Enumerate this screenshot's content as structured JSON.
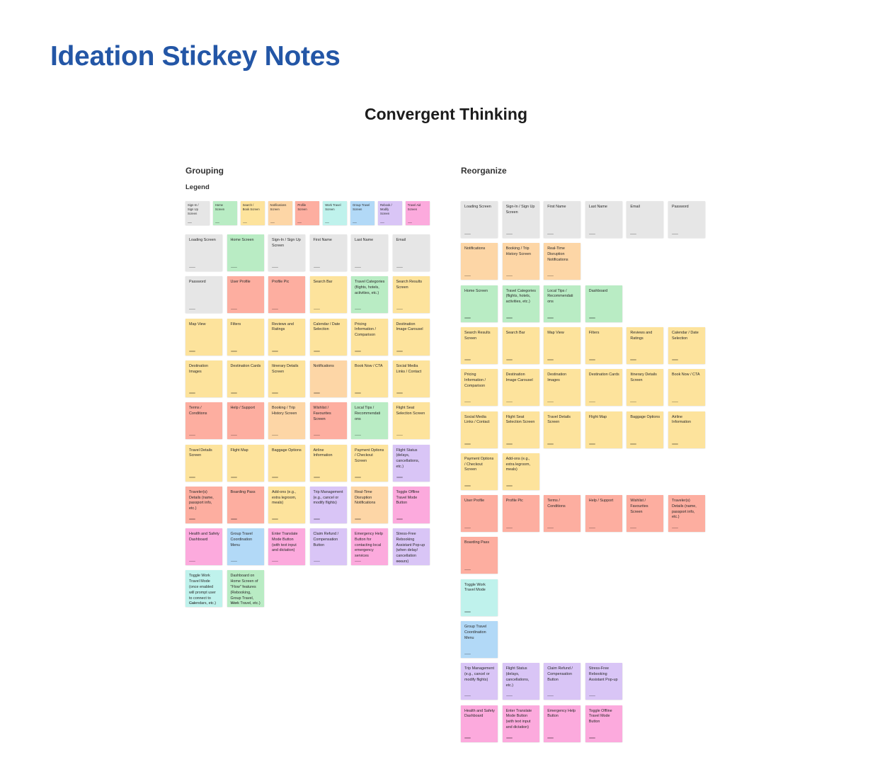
{
  "page": {
    "title": "Ideation Stickey Notes",
    "subtitle": "Convergent Thinking"
  },
  "colors": {
    "gray": "#e6e6e6",
    "green": "#b9ecc4",
    "yellow": "#fde39c",
    "peach": "#fdd6a6",
    "salmon": "#fdaea0",
    "cyan": "#bff2ec",
    "blue": "#b2d9f7",
    "purple": "#d9c5f6",
    "pink": "#fcaadd"
  },
  "grouping": {
    "title": "Grouping",
    "legend_title": "Legend",
    "legend": [
      {
        "text": "Sign-In /\nSign Up\nScreen",
        "color": "gray"
      },
      {
        "text": "Home\nScreen",
        "color": "green"
      },
      {
        "text": "Search /\nBook Screen",
        "color": "yellow"
      },
      {
        "text": "Notifications\nScreen",
        "color": "peach"
      },
      {
        "text": "Profile\nScreen",
        "color": "salmon"
      },
      {
        "text": "Work Travel\nScreen",
        "color": "cyan"
      },
      {
        "text": "Group Travel\nScreen",
        "color": "blue"
      },
      {
        "text": "Rebook /\nModify\nScreen",
        "color": "purple"
      },
      {
        "text": "Travel Aid\nScreen",
        "color": "pink"
      }
    ],
    "notes": [
      [
        {
          "text": "Loading Screen",
          "color": "gray"
        },
        {
          "text": "Home Screen",
          "color": "green"
        },
        {
          "text": "Sign-In / Sign Up\nScreen",
          "color": "gray"
        },
        {
          "text": "First Name",
          "color": "gray"
        },
        {
          "text": "Last Name",
          "color": "gray"
        },
        {
          "text": "Email",
          "color": "gray"
        }
      ],
      [
        {
          "text": "Password",
          "color": "gray"
        },
        {
          "text": "User Profile",
          "color": "salmon"
        },
        {
          "text": "Profile Pic",
          "color": "salmon"
        },
        {
          "text": "Search Bar",
          "color": "yellow"
        },
        {
          "text": "Travel Categories\n(flights, hotels,\nactivities, etc.)",
          "color": "green"
        },
        {
          "text": "Search Results\nScreen",
          "color": "yellow"
        }
      ],
      [
        {
          "text": "Map View",
          "color": "yellow"
        },
        {
          "text": "Filters",
          "color": "yellow"
        },
        {
          "text": "Reviews and\nRatings",
          "color": "yellow"
        },
        {
          "text": "Calendar / Date\nSelection",
          "color": "yellow"
        },
        {
          "text": "Pricing\nInformation /\nComparison",
          "color": "yellow"
        },
        {
          "text": "Destination\nImage Carousel",
          "color": "yellow"
        }
      ],
      [
        {
          "text": "Destination\nImages",
          "color": "yellow"
        },
        {
          "text": "Destination Cards",
          "color": "yellow"
        },
        {
          "text": "Itinerary Details\nScreen",
          "color": "yellow"
        },
        {
          "text": "Notifications",
          "color": "peach"
        },
        {
          "text": "Book Now / CTA",
          "color": "yellow"
        },
        {
          "text": "Social Media\nLinks / Contact",
          "color": "yellow"
        }
      ],
      [
        {
          "text": "Terms /\nConditions",
          "color": "salmon"
        },
        {
          "text": "Help / Support",
          "color": "salmon"
        },
        {
          "text": "Booking / Trip\nHistory Screen",
          "color": "peach"
        },
        {
          "text": "Wishlist /\nFavourites Screen",
          "color": "salmon"
        },
        {
          "text": "Local Tips /\nRecommendati\nons",
          "color": "green"
        },
        {
          "text": "Flight Seat\nSelection Screen",
          "color": "yellow"
        }
      ],
      [
        {
          "text": "Travel Details\nScreen",
          "color": "yellow"
        },
        {
          "text": "Flight Map",
          "color": "yellow"
        },
        {
          "text": "Baggage Options",
          "color": "yellow"
        },
        {
          "text": "Airline\nInformation",
          "color": "yellow"
        },
        {
          "text": "Payment Options\n/ Checkout\nScreen",
          "color": "yellow"
        },
        {
          "text": "Flight Status\n(delays,\ncancellations,\netc.)",
          "color": "purple"
        }
      ],
      [
        {
          "text": "Traveler(s)\nDetails (name,\npassport info,\netc.)",
          "color": "salmon"
        },
        {
          "text": "Boarding Pass",
          "color": "salmon"
        },
        {
          "text": "Add-ons (e.g.,\nextra legroom,\nmeals)",
          "color": "yellow"
        },
        {
          "text": "Trip Management\n(e.g., cancel or\nmodify flights)",
          "color": "purple"
        },
        {
          "text": "Real-Time\nDisruption\nNotifications",
          "color": "peach"
        },
        {
          "text": "Toggle Offline\nTravel Mode\nButton",
          "color": "pink"
        }
      ],
      [
        {
          "text": "Health and Safety\nDashboard",
          "color": "pink"
        },
        {
          "text": "Group Travel\nCoordination\nMenu",
          "color": "blue"
        },
        {
          "text": "Enter Translate\nMode Button\n(with text input\nand dictation)",
          "color": "pink"
        },
        {
          "text": "Claim Refund /\nCompensation\nButton",
          "color": "purple"
        },
        {
          "text": "Emergency Help\nButton for\ncontacting local\nemergency\nservices",
          "color": "pink"
        },
        {
          "text": "Stress-Free\nRebooking\nAssistant Pop-up\n(when delay/\ncancellation\noccurs)",
          "color": "purple"
        }
      ],
      [
        {
          "text": "Toggle Work\nTravel Mode\n(once enabled\nwill prompt user\nto connect to\nCalendars, etc.)",
          "color": "cyan"
        },
        {
          "text": "Dashboard on\nHome Screen of\n\"Flow\" features\n(Rebooking,\nGroup Travel,\nWork Travel, etc.)",
          "color": "green"
        }
      ]
    ]
  },
  "reorganize": {
    "title": "Reorganize",
    "notes": [
      [
        {
          "text": "Loading Screen",
          "color": "gray"
        },
        {
          "text": "Sign-In / Sign Up\nScreen",
          "color": "gray"
        },
        {
          "text": "First Name",
          "color": "gray"
        },
        {
          "text": "Last Name",
          "color": "gray"
        },
        {
          "text": "Email",
          "color": "gray"
        },
        {
          "text": "Password",
          "color": "gray"
        }
      ],
      [
        {
          "text": "Notifications",
          "color": "peach"
        },
        {
          "text": "Booking / Trip\nHistory Screen",
          "color": "peach"
        },
        {
          "text": "Real-Time\nDisruption\nNotifications",
          "color": "peach"
        }
      ],
      [
        {
          "text": "Home Screen",
          "color": "green"
        },
        {
          "text": "Travel Categories\n(flights, hotels,\nactivities, etc.)",
          "color": "green"
        },
        {
          "text": "Local Tips /\nRecommendati\nons",
          "color": "green"
        },
        {
          "text": "Dashboard",
          "color": "green"
        }
      ],
      [
        {
          "text": "Search Results\nScreen",
          "color": "yellow"
        },
        {
          "text": "Search Bar",
          "color": "yellow"
        },
        {
          "text": "Map View",
          "color": "yellow"
        },
        {
          "text": "Filters",
          "color": "yellow"
        },
        {
          "text": "Reviews and\nRatings",
          "color": "yellow"
        },
        {
          "text": "Calendar / Date\nSelection",
          "color": "yellow"
        }
      ],
      [
        {
          "text": "Pricing\nInformation /\nComparison",
          "color": "yellow"
        },
        {
          "text": "Destination\nImage Carousel",
          "color": "yellow"
        },
        {
          "text": "Destination\nImages",
          "color": "yellow"
        },
        {
          "text": "Destination Cards",
          "color": "yellow"
        },
        {
          "text": "Itinerary Details\nScreen",
          "color": "yellow"
        },
        {
          "text": "Book Now / CTA",
          "color": "yellow"
        }
      ],
      [
        {
          "text": "Social Media\nLinks / Contact",
          "color": "yellow"
        },
        {
          "text": "Flight Seat\nSelection Screen",
          "color": "yellow"
        },
        {
          "text": "Travel Details\nScreen",
          "color": "yellow"
        },
        {
          "text": "Flight Map",
          "color": "yellow"
        },
        {
          "text": "Baggage Options",
          "color": "yellow"
        },
        {
          "text": "Airline\nInformation",
          "color": "yellow"
        }
      ],
      [
        {
          "text": "Payment Options\n/ Checkout\nScreen",
          "color": "yellow"
        },
        {
          "text": "Add-ons (e.g.,\nextra legroom,\nmeals)",
          "color": "yellow"
        }
      ],
      [
        {
          "text": "User Profile",
          "color": "salmon"
        },
        {
          "text": "Profile Pic",
          "color": "salmon"
        },
        {
          "text": "Terms /\nConditions",
          "color": "salmon"
        },
        {
          "text": "Help / Support",
          "color": "salmon"
        },
        {
          "text": "Wishlist /\nFavourites Screen",
          "color": "salmon"
        },
        {
          "text": "Traveler(s)\nDetails (name,\npassport info,\netc.)",
          "color": "salmon"
        }
      ],
      [
        {
          "text": "Boarding Pass",
          "color": "salmon"
        }
      ],
      [
        {
          "text": "Toggle Work\nTravel Mode",
          "color": "cyan"
        }
      ],
      [
        {
          "text": "Group Travel\nCoordination\nMenu",
          "color": "blue"
        }
      ],
      [
        {
          "text": "Trip Management\n(e.g., cancel or\nmodify flights)",
          "color": "purple"
        },
        {
          "text": "Flight Status\n(delays,\ncancellations,\netc.)",
          "color": "purple"
        },
        {
          "text": "Claim Refund /\nCompensation\nButton",
          "color": "purple"
        },
        {
          "text": "Stress-Free\nRebooking\nAssistant Pop-up",
          "color": "purple"
        }
      ],
      [
        {
          "text": "Health and Safety\nDashboard",
          "color": "pink"
        },
        {
          "text": "Enter Translate\nMode Button\n(with text input\nand dictation)",
          "color": "pink"
        },
        {
          "text": "Emergency Help\nButton",
          "color": "pink"
        },
        {
          "text": "Toggle Offline\nTravel Mode\nButton",
          "color": "pink"
        }
      ]
    ]
  }
}
